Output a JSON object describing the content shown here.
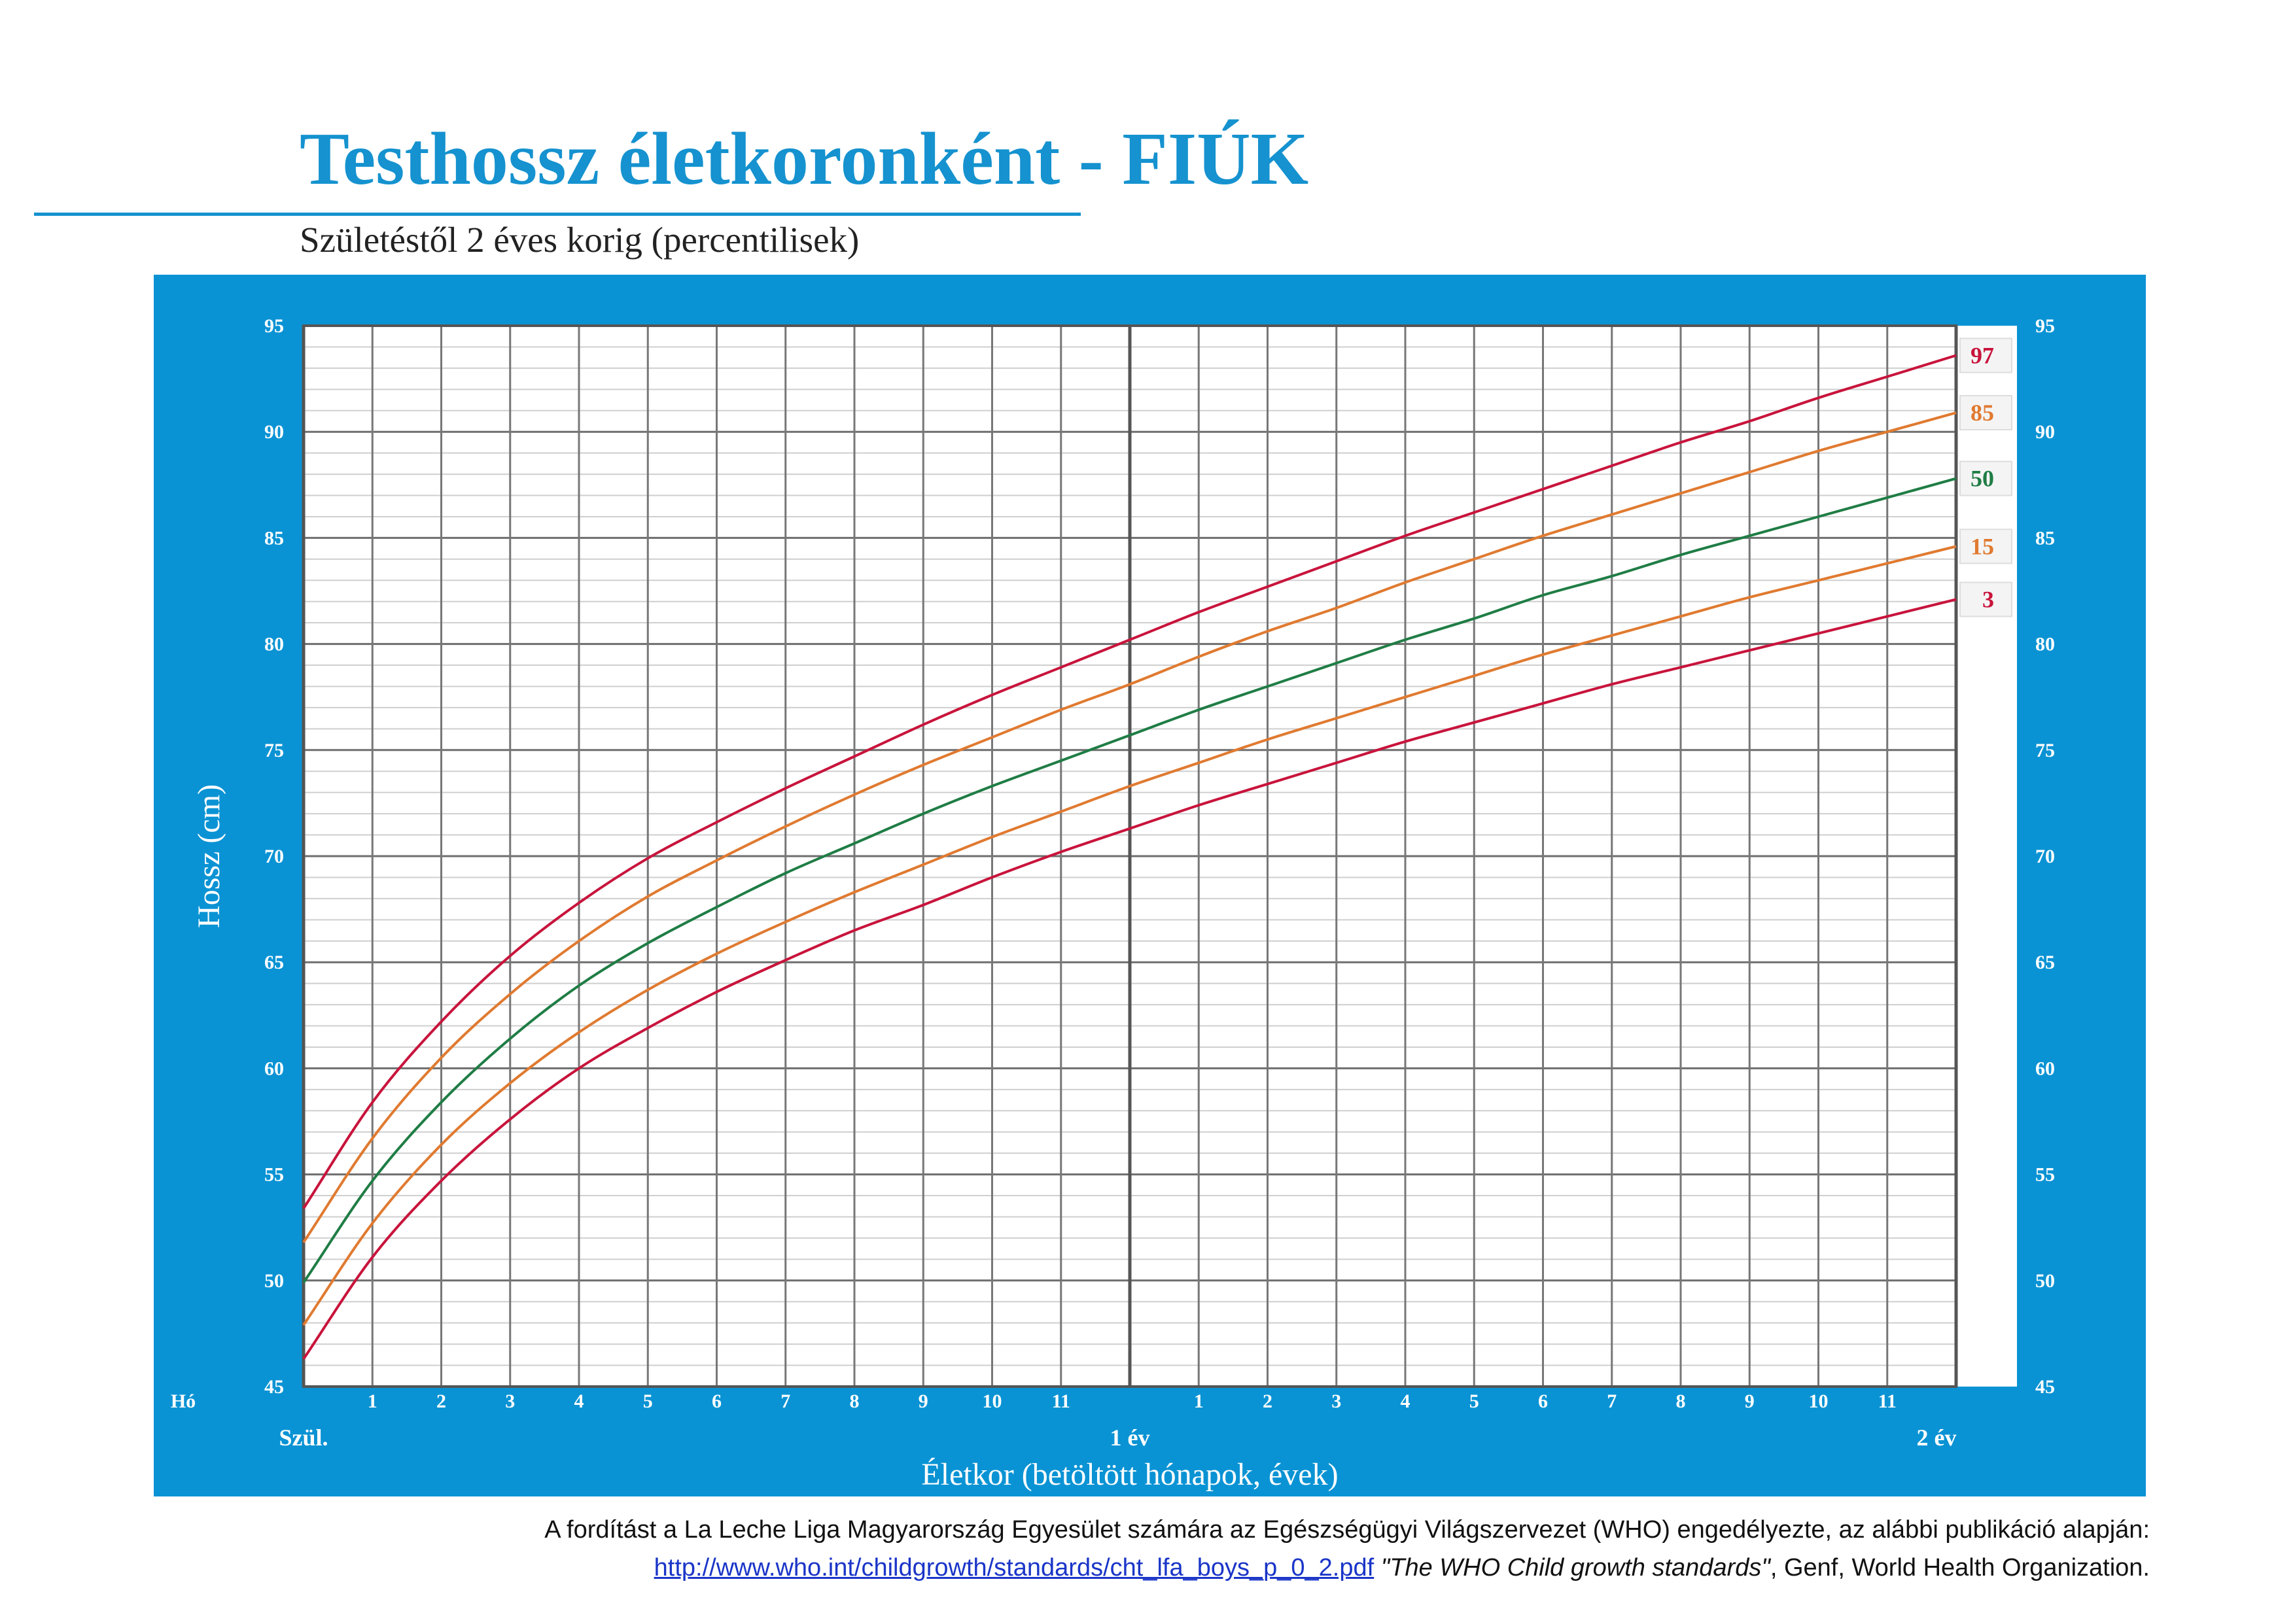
{
  "title": "Testhossz életkoronként - FIÚK",
  "subtitle": "Születéstől 2 éves korig (percentilisek)",
  "colors": {
    "brand_blue": "#1592cf",
    "panel_blue": "#0a93d4",
    "p3": "#c8143c",
    "p15": "#e07a30",
    "p50": "#1f7d45",
    "p85": "#e07a30",
    "p97": "#c8143c"
  },
  "chart_data": {
    "type": "line",
    "xlabel": "Életkor (betöltött hónapok, évek)",
    "ylabel": "Hossz (cm)",
    "x_unit_label": "Hó",
    "xlim": [
      0,
      24
    ],
    "ylim": [
      45,
      95
    ],
    "y_ticks": [
      45,
      50,
      55,
      60,
      65,
      70,
      75,
      80,
      85,
      90,
      95
    ],
    "x_month_ticks": [
      "1",
      "2",
      "3",
      "4",
      "5",
      "6",
      "7",
      "8",
      "9",
      "10",
      "11",
      "1",
      "2",
      "3",
      "4",
      "5",
      "6",
      "7",
      "8",
      "9",
      "10",
      "11"
    ],
    "x_year_labels": [
      {
        "x": 0,
        "label": "Szül."
      },
      {
        "x": 12,
        "label": "1 év"
      },
      {
        "x": 24,
        "label": "2 év"
      }
    ],
    "grid": true,
    "x": [
      0,
      1,
      2,
      3,
      4,
      5,
      6,
      7,
      8,
      9,
      10,
      11,
      12,
      13,
      14,
      15,
      16,
      17,
      18,
      19,
      20,
      21,
      22,
      23,
      24
    ],
    "series": [
      {
        "name": "3",
        "values": [
          46.3,
          51.1,
          54.7,
          57.6,
          60.0,
          61.9,
          63.6,
          65.1,
          66.5,
          67.7,
          69.0,
          70.2,
          71.3,
          72.4,
          73.4,
          74.4,
          75.4,
          76.3,
          77.2,
          78.1,
          78.9,
          79.7,
          80.5,
          81.3,
          82.1
        ]
      },
      {
        "name": "15",
        "values": [
          47.9,
          52.7,
          56.4,
          59.3,
          61.7,
          63.7,
          65.4,
          66.9,
          68.3,
          69.6,
          70.9,
          72.1,
          73.3,
          74.4,
          75.5,
          76.5,
          77.5,
          78.5,
          79.5,
          80.4,
          81.3,
          82.2,
          83.0,
          83.8,
          84.6
        ]
      },
      {
        "name": "50",
        "values": [
          49.9,
          54.7,
          58.4,
          61.4,
          63.9,
          65.9,
          67.6,
          69.2,
          70.6,
          72.0,
          73.3,
          74.5,
          75.7,
          76.9,
          78.0,
          79.1,
          80.2,
          81.2,
          82.3,
          83.2,
          84.2,
          85.1,
          86.0,
          86.9,
          87.8
        ]
      },
      {
        "name": "85",
        "values": [
          51.8,
          56.7,
          60.5,
          63.5,
          66.0,
          68.1,
          69.8,
          71.4,
          72.9,
          74.3,
          75.6,
          76.9,
          78.1,
          79.4,
          80.6,
          81.7,
          82.9,
          84.0,
          85.1,
          86.1,
          87.1,
          88.1,
          89.1,
          90.0,
          90.9
        ]
      },
      {
        "name": "97",
        "values": [
          53.4,
          58.4,
          62.2,
          65.3,
          67.8,
          69.9,
          71.6,
          73.2,
          74.7,
          76.2,
          77.6,
          78.9,
          80.2,
          81.5,
          82.7,
          83.9,
          85.1,
          86.2,
          87.3,
          88.4,
          89.5,
          90.5,
          91.6,
          92.6,
          93.6
        ]
      }
    ]
  },
  "footer": {
    "line1": "A fordítást a La Leche Liga Magyarország Egyesület számára az Egészségügyi Világszervezet (WHO) engedélyezte, az alábbi publikáció alapján:",
    "link": "http://www.who.int/childgrowth/standards/cht_lfa_boys_p_0_2.pdf",
    "quote": "\"The WHO Child growth standards\"",
    "rest": ", Genf, World Health Organization."
  }
}
